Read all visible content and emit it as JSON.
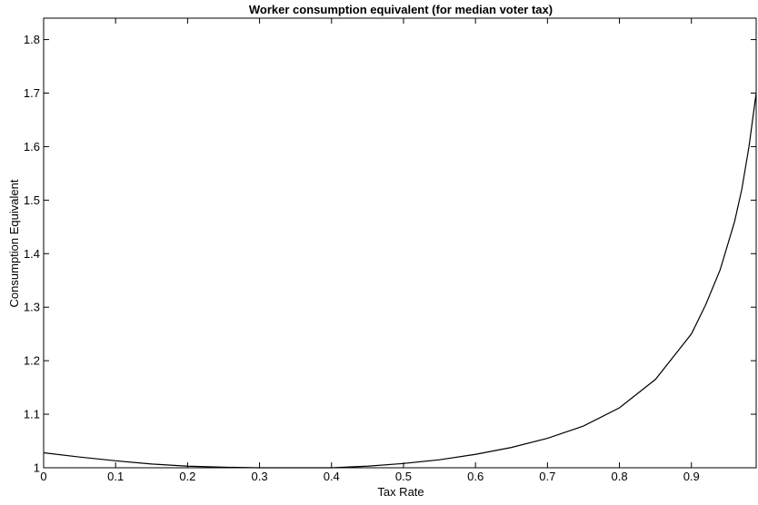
{
  "chart_data": {
    "type": "line",
    "title": "Worker consumption equivalent (for median voter tax)",
    "xlabel": "Tax Rate",
    "ylabel": "Consumption Equivalent",
    "xlim": [
      0,
      0.99
    ],
    "ylim": [
      1.0,
      1.84
    ],
    "xticks": [
      0,
      0.1,
      0.2,
      0.3,
      0.4,
      0.5,
      0.6,
      0.7,
      0.8,
      0.9
    ],
    "xtick_labels": [
      "0",
      "0.1",
      "0.2",
      "0.3",
      "0.4",
      "0.5",
      "0.6",
      "0.7",
      "0.8",
      "0.9"
    ],
    "yticks": [
      1.0,
      1.1,
      1.2,
      1.3,
      1.4,
      1.5,
      1.6,
      1.7,
      1.8
    ],
    "ytick_labels": [
      "1",
      "1.1",
      "1.2",
      "1.3",
      "1.4",
      "1.5",
      "1.6",
      "1.7",
      "1.8"
    ],
    "grid": false,
    "series": [
      {
        "color": "#000000",
        "x": [
          0,
          0.05,
          0.1,
          0.15,
          0.2,
          0.25,
          0.3,
          0.35,
          0.4,
          0.45,
          0.5,
          0.55,
          0.6,
          0.65,
          0.7,
          0.75,
          0.8,
          0.85,
          0.9,
          0.92,
          0.94,
          0.96,
          0.97,
          0.98,
          0.99
        ],
        "y": [
          1.028,
          1.02,
          1.013,
          1.007,
          1.003,
          1.001,
          1.0,
          0.999,
          1.0,
          1.003,
          1.008,
          1.015,
          1.025,
          1.038,
          1.055,
          1.078,
          1.112,
          1.165,
          1.25,
          1.305,
          1.37,
          1.46,
          1.52,
          1.6,
          1.7
        ]
      }
    ]
  }
}
